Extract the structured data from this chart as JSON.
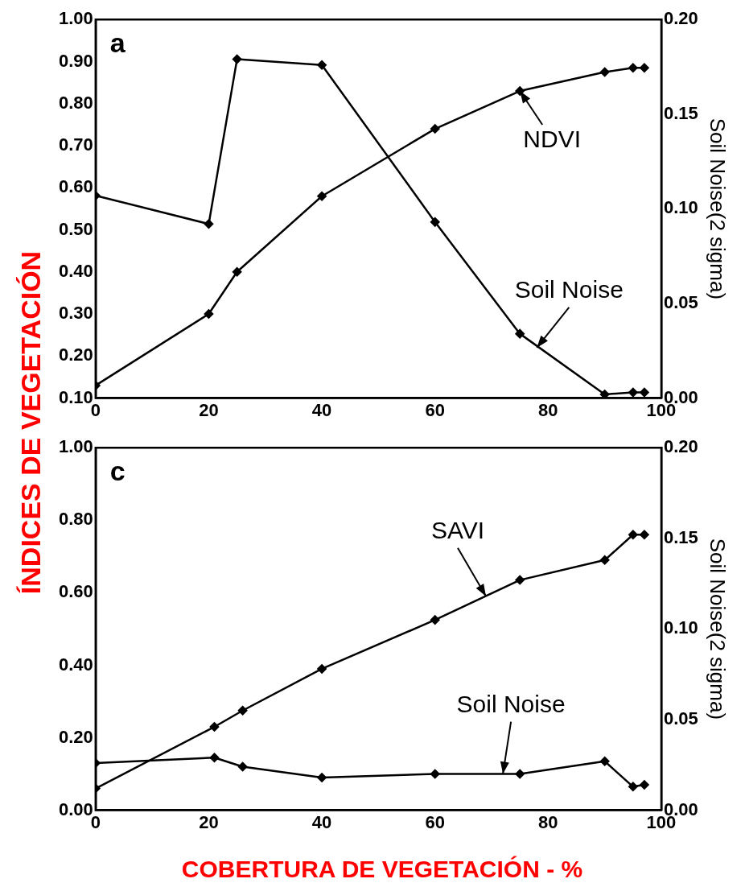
{
  "chart_data": [
    {
      "type": "line",
      "ylabel": "ÍNDICES DE VEGETACIÓN",
      "y2label": "Soil Noise(2 sigma)",
      "annotations": [
        "a",
        {
          "text": "NDVI",
          "x": 75,
          "y": 0.83
        },
        {
          "text": "Soil Noise",
          "x": 78,
          "y": 0.22
        }
      ],
      "xlim": [
        0,
        100
      ],
      "xticks": [
        0,
        20,
        40,
        60,
        80,
        100
      ],
      "ylim": [
        0.1,
        1.0
      ],
      "yticks": [
        {
          "value": 0.1,
          "label": "0.10"
        },
        {
          "value": 0.2,
          "label": "0.20"
        },
        {
          "value": 0.3,
          "label": "0.30"
        },
        {
          "value": 0.4,
          "label": "0.40"
        },
        {
          "value": 0.5,
          "label": "0.50"
        },
        {
          "value": 0.6,
          "label": "0.60"
        },
        {
          "value": 0.7,
          "label": "0.70"
        },
        {
          "value": 0.8,
          "label": "0.80"
        },
        {
          "value": 0.9,
          "label": "0.90"
        },
        {
          "value": 1.0,
          "label": "1.00"
        }
      ],
      "y2lim": [
        0,
        0.2
      ],
      "y2ticks": [
        {
          "value": 0,
          "label": "0.00"
        },
        {
          "value": 0.05,
          "label": "0.05"
        },
        {
          "value": 0.1,
          "label": "0.10"
        },
        {
          "value": 0.15,
          "label": "0.15"
        },
        {
          "value": 0.2,
          "label": "0.20"
        }
      ],
      "grid": false,
      "legend": false,
      "marker": "diamond",
      "line_style": "solid",
      "series": [
        {
          "color": "#000000",
          "x": [
            0,
            20,
            25,
            40,
            60,
            75,
            90,
            95,
            97
          ],
          "values": [
            0.13,
            0.3,
            0.4,
            0.58,
            0.74,
            0.83,
            0.875,
            0.885,
            0.885
          ]
        },
        {
          "color": "#000000",
          "axis": "y2",
          "x": [
            0,
            20,
            25,
            40,
            60,
            75,
            90,
            95,
            97
          ],
          "values": [
            0.107,
            0.092,
            0.179,
            0.176,
            0.093,
            0.034,
            0.002,
            0.003,
            0.003
          ]
        }
      ]
    },
    {
      "type": "line",
      "xlabel": "COBERTURA DE VEGETACIÓN - %",
      "y2label": "Soil Noise(2 sigma)",
      "annotations": [
        "c",
        {
          "text": "SAVI",
          "x": 69,
          "y": 0.59
        },
        {
          "text": "Soil Noise",
          "x": 72,
          "y": 0.1
        }
      ],
      "xlim": [
        0,
        100
      ],
      "xticks": [
        0,
        20,
        40,
        60,
        80,
        100
      ],
      "ylim": [
        0,
        1.0
      ],
      "yticks": [
        {
          "value": 0,
          "label": "0.00"
        },
        {
          "value": 0.2,
          "label": "0.20"
        },
        {
          "value": 0.4,
          "label": "0.40"
        },
        {
          "value": 0.6,
          "label": "0.60"
        },
        {
          "value": 0.8,
          "label": "0.80"
        },
        {
          "value": 1.0,
          "label": "1.00"
        }
      ],
      "y2lim": [
        0,
        0.2
      ],
      "y2ticks": [
        {
          "value": 0,
          "label": "0.00"
        },
        {
          "value": 0.05,
          "label": "0.05"
        },
        {
          "value": 0.1,
          "label": "0.10"
        },
        {
          "value": 0.15,
          "label": "0.15"
        },
        {
          "value": 0.2,
          "label": "0.20"
        }
      ],
      "grid": false,
      "legend": false,
      "marker": "diamond",
      "line_style": "solid",
      "series": [
        {
          "color": "#000000",
          "x": [
            0,
            21,
            26,
            40,
            60,
            75,
            90,
            95,
            97
          ],
          "values": [
            0.06,
            0.23,
            0.275,
            0.39,
            0.525,
            0.635,
            0.69,
            0.76,
            0.76
          ]
        },
        {
          "color": "#000000",
          "axis": "y2",
          "x": [
            0,
            21,
            26,
            40,
            60,
            75,
            90,
            95,
            97
          ],
          "values": [
            0.026,
            0.029,
            0.024,
            0.018,
            0.02,
            0.02,
            0.027,
            0.013,
            0.014
          ]
        }
      ]
    }
  ]
}
